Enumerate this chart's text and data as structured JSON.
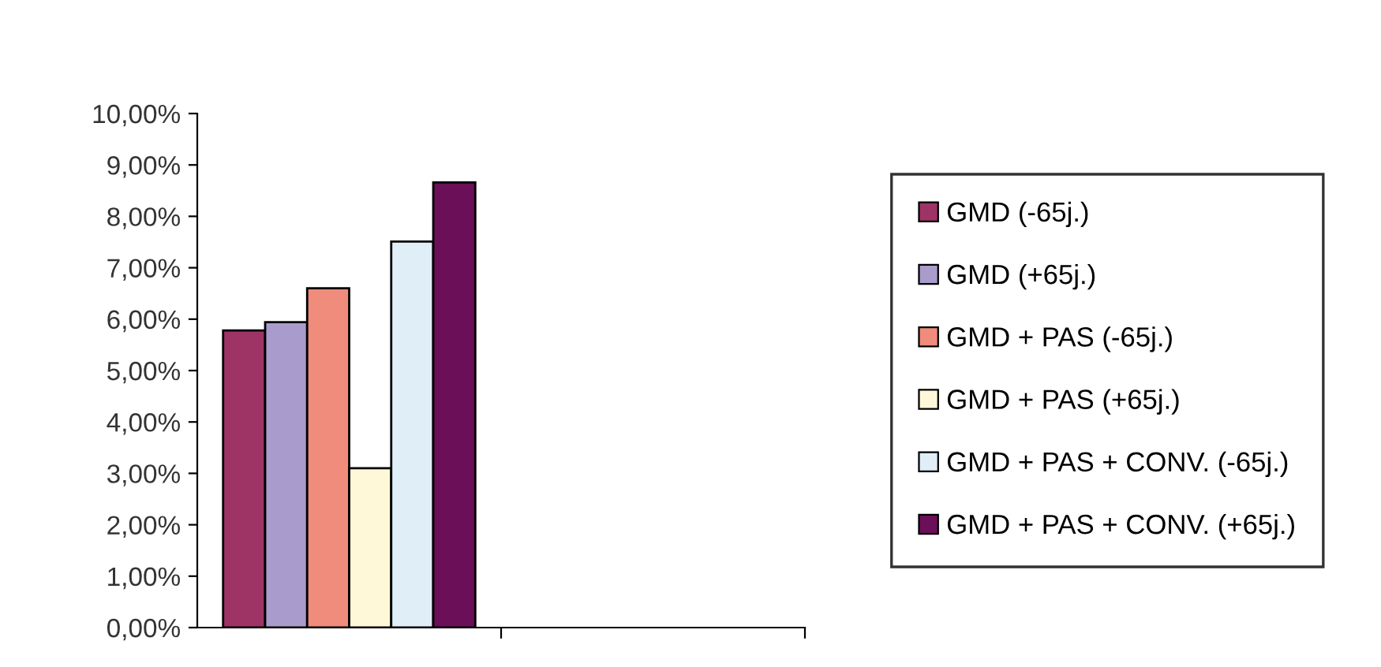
{
  "chart_data": {
    "type": "bar",
    "categories": [
      null,
      null
    ],
    "series": [
      {
        "name": "GMD (-65j.)",
        "color": "#9e3366",
        "values": [
          5.78,
          null
        ]
      },
      {
        "name": "GMD (+65j.)",
        "color": "#a99ccc",
        "values": [
          5.94,
          null
        ]
      },
      {
        "name": "GMD + PAS (-65j.)",
        "color": "#f08c7c",
        "values": [
          6.6,
          null
        ]
      },
      {
        "name": "GMD + PAS (+65j.)",
        "color": "#fff8d8",
        "values": [
          3.1,
          null
        ]
      },
      {
        "name": "GMD + PAS + CONV. (-65j.)",
        "color": "#e0eef8",
        "values": [
          7.51,
          null
        ]
      },
      {
        "name": "GMD + PAS + CONV. (+65j.)",
        "color": "#6b0f58",
        "values": [
          8.66,
          null
        ]
      }
    ],
    "ylim": [
      0,
      10
    ],
    "yticks": [
      {
        "value": 0,
        "label": "0,00%"
      },
      {
        "value": 1,
        "label": "1,00%"
      },
      {
        "value": 2,
        "label": "2,00%"
      },
      {
        "value": 3,
        "label": "3,00%"
      },
      {
        "value": 4,
        "label": "4,00%"
      },
      {
        "value": 5,
        "label": "5,00%"
      },
      {
        "value": 6,
        "label": "6,00%"
      },
      {
        "value": 7,
        "label": "7,00%"
      },
      {
        "value": 8,
        "label": "8,00%"
      },
      {
        "value": 9,
        "label": "9,00%"
      },
      {
        "value": 10,
        "label": "10,00%"
      }
    ],
    "grid": false,
    "legend": "right"
  }
}
